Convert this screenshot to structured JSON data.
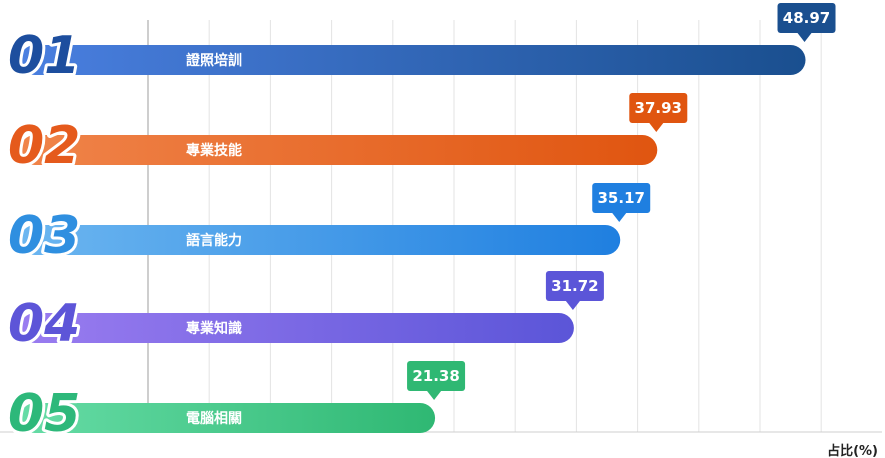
{
  "chart_data": {
    "type": "bar",
    "orientation": "horizontal",
    "categories": [
      "證照培訓",
      "專業技能",
      "語言能力",
      "專業知識",
      "電腦相關"
    ],
    "ranks": [
      "01",
      "02",
      "03",
      "04",
      "05"
    ],
    "values": [
      48.97,
      37.93,
      35.17,
      31.72,
      21.38
    ],
    "value_labels": [
      "48.97",
      "37.93",
      "35.17",
      "31.72",
      "21.38"
    ],
    "xlabel": "占比(%)",
    "xlim": [
      0,
      55
    ],
    "grid": true,
    "colors": [
      {
        "start": "#4a7fe0",
        "end": "#1a4f8f"
      },
      {
        "start": "#f0844a",
        "end": "#e05510"
      },
      {
        "start": "#6cb6f0",
        "end": "#1f7fe0"
      },
      {
        "start": "#9a7cf0",
        "end": "#5b55d8"
      },
      {
        "start": "#66dca6",
        "end": "#2fb873"
      }
    ],
    "rank_colors": [
      "#1d4e9e",
      "#e55a1c",
      "#2f8fe0",
      "#5d55d8",
      "#2db87a"
    ]
  }
}
